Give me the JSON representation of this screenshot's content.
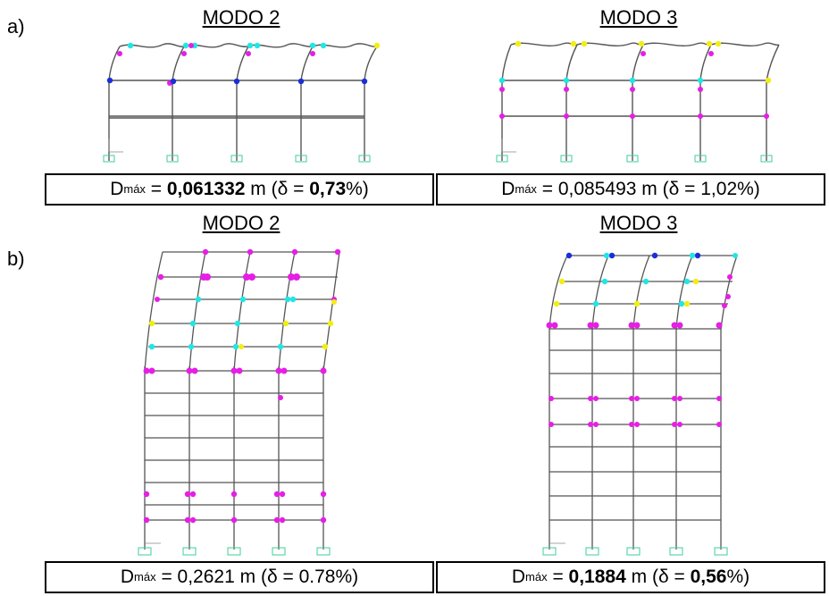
{
  "colors": {
    "cyan": "#22e5e5",
    "magenta": "#e61ee6",
    "yellow": "#f2ee14",
    "blue": "#1a2fd6",
    "frame": "#555555",
    "support": "#3fcf9a"
  },
  "panel_a": {
    "label": "a)",
    "left_title": "MODO 2",
    "right_title": "MODO 3",
    "left_caption": {
      "pre": "D",
      "sub": "máx",
      "eq": " = ",
      "value": "0,061332",
      "unit": " m (",
      "delta": "δ",
      "eq2": " = ",
      "ratio": "0,73",
      "pct": "%)"
    },
    "right_caption": {
      "pre": "D",
      "sub": "máx",
      "eq": " = ",
      "value": "0,085493",
      "unit": " m (",
      "delta": "δ",
      "eq2": " = ",
      "ratio": "1,02",
      "pct": "%)"
    }
  },
  "panel_b": {
    "label": "b)",
    "left_title": "MODO 2",
    "right_title": "MODO 3",
    "left_caption": {
      "pre": "D",
      "sub": "máx",
      "eq": " = ",
      "value": "0,2621",
      "unit": " m (",
      "delta": "δ",
      "eq2": " = ",
      "ratio": "0.78",
      "pct": "%)"
    },
    "right_caption": {
      "pre": "D",
      "sub": "máx",
      "eq": " = ",
      "value": "0,1884",
      "unit": " m (",
      "delta": "δ",
      "eq2": " = ",
      "ratio": "0,56",
      "pct": "%)"
    }
  },
  "axis": {
    "z": "z",
    "x": "x"
  }
}
